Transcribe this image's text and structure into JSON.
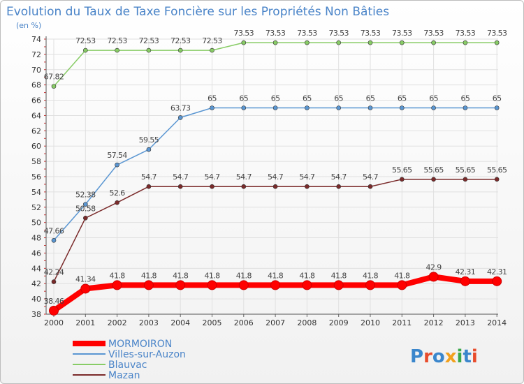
{
  "chart_data": {
    "type": "line",
    "title": "Evolution du Taux de Taxe Foncière sur les Propriétés Non Bâties",
    "subtitle": "(en %)",
    "x": [
      "2000",
      "2001",
      "2002",
      "2003",
      "2004",
      "2005",
      "2006",
      "2007",
      "2008",
      "2009",
      "2010",
      "2011",
      "2012",
      "2013",
      "2014"
    ],
    "ylim": [
      38,
      74
    ],
    "yticks": [
      38,
      40,
      42,
      44,
      46,
      48,
      50,
      52,
      54,
      56,
      58,
      60,
      62,
      64,
      66,
      68,
      70,
      72,
      74
    ],
    "grid": true,
    "legend_position": "bottom-left",
    "series": [
      {
        "name": "MORMOIRON",
        "color": "#ff0000",
        "values": [
          38.46,
          41.34,
          41.8,
          41.8,
          41.8,
          41.8,
          41.8,
          41.8,
          41.8,
          41.8,
          41.8,
          41.8,
          42.9,
          42.31,
          42.31
        ],
        "labels": [
          "38.46",
          "41.34",
          "41.8",
          "41.8",
          "41.8",
          "41.8",
          "41.8",
          "41.8",
          "41.8",
          "41.8",
          "41.8",
          "41.8",
          "42.9",
          "42.31",
          "42.31"
        ]
      },
      {
        "name": "Villes-sur-Auzon",
        "color": "#5a96d2",
        "values": [
          47.66,
          52.38,
          57.54,
          59.55,
          63.73,
          65,
          65,
          65,
          65,
          65,
          65,
          65,
          65,
          65,
          65
        ],
        "labels": [
          "47.66",
          "52.38",
          "57.54",
          "59.55",
          "63.73",
          "65",
          "65",
          "65",
          "65",
          "65",
          "65",
          "65",
          "65",
          "65",
          "65"
        ]
      },
      {
        "name": "Blauvac",
        "color": "#88cc66",
        "values": [
          67.82,
          72.53,
          72.53,
          72.53,
          72.53,
          72.53,
          73.53,
          73.53,
          73.53,
          73.53,
          73.53,
          73.53,
          73.53,
          73.53,
          73.53
        ],
        "labels": [
          "67.82",
          "72.53",
          "72.53",
          "72.53",
          "72.53",
          "72.53",
          "73.53",
          "73.53",
          "73.53",
          "73.53",
          "73.53",
          "73.53",
          "73.53",
          "73.53",
          "73.53"
        ]
      },
      {
        "name": "Mazan",
        "color": "#7a2a2a",
        "values": [
          42.24,
          50.58,
          52.6,
          54.7,
          54.7,
          54.7,
          54.7,
          54.7,
          54.7,
          54.7,
          54.7,
          55.65,
          55.65,
          55.65,
          55.65
        ],
        "labels": [
          "42.24",
          "50.58",
          "52.6",
          "54.7",
          "54.7",
          "54.7",
          "54.7",
          "54.7",
          "54.7",
          "54.7",
          "54.7",
          "55.65",
          "55.65",
          "55.65",
          "55.65"
        ]
      }
    ]
  },
  "logo": {
    "text": "Proxiti"
  }
}
